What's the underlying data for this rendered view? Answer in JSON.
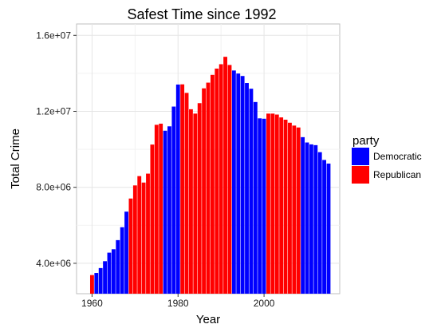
{
  "chart_data": {
    "type": "bar",
    "title": "Safest Time since 1992",
    "xlabel": "Year",
    "ylabel": "Total Crime",
    "xlim": [
      1956.4,
      2017.6
    ],
    "ylim": [
      2400000,
      16600000
    ],
    "x_ticks": [
      1960,
      1980,
      2000
    ],
    "x_tick_labels": [
      "1960",
      "1980",
      "2000"
    ],
    "y_ticks": [
      4000000,
      8000000,
      12000000,
      16000000
    ],
    "y_tick_labels": [
      "4.0e+06",
      "8.0e+06",
      "1.2e+07",
      "1.6e+07"
    ],
    "grid": true,
    "legend": {
      "title": "party",
      "position": "right",
      "entries": [
        {
          "name": "Democratic",
          "color": "#0000ff"
        },
        {
          "name": "Republican",
          "color": "#ff0000"
        }
      ]
    },
    "colors": {
      "Democratic": "#0000ff",
      "Republican": "#ff0000"
    },
    "x": [
      1960,
      1961,
      1962,
      1963,
      1964,
      1965,
      1966,
      1967,
      1968,
      1969,
      1970,
      1971,
      1972,
      1973,
      1974,
      1975,
      1976,
      1977,
      1978,
      1979,
      1980,
      1981,
      1982,
      1983,
      1984,
      1985,
      1986,
      1987,
      1988,
      1989,
      1990,
      1991,
      1992,
      1993,
      1994,
      1995,
      1996,
      1997,
      1998,
      1999,
      2000,
      2001,
      2002,
      2003,
      2004,
      2005,
      2006,
      2007,
      2008,
      2009,
      2010,
      2011,
      2012,
      2013,
      2014,
      2015
    ],
    "values": [
      3380000,
      3490000,
      3750000,
      4110000,
      4560000,
      4740000,
      5220000,
      5900000,
      6720000,
      7410000,
      8100000,
      8590000,
      8250000,
      8720000,
      10250000,
      11290000,
      11350000,
      10980000,
      11210000,
      12250000,
      13410000,
      13420000,
      12970000,
      12110000,
      11880000,
      12430000,
      13210000,
      13510000,
      13920000,
      14250000,
      14480000,
      14870000,
      14440000,
      14150000,
      13990000,
      13860000,
      13490000,
      13190000,
      12490000,
      11630000,
      11610000,
      11880000,
      11880000,
      11830000,
      11680000,
      11560000,
      11400000,
      11250000,
      11150000,
      10640000,
      10360000,
      10260000,
      10220000,
      9850000,
      9440000,
      9250000
    ],
    "party": [
      "Republican",
      "Democratic",
      "Democratic",
      "Democratic",
      "Democratic",
      "Democratic",
      "Democratic",
      "Democratic",
      "Democratic",
      "Republican",
      "Republican",
      "Republican",
      "Republican",
      "Republican",
      "Republican",
      "Republican",
      "Republican",
      "Democratic",
      "Democratic",
      "Democratic",
      "Democratic",
      "Republican",
      "Republican",
      "Republican",
      "Republican",
      "Republican",
      "Republican",
      "Republican",
      "Republican",
      "Republican",
      "Republican",
      "Republican",
      "Republican",
      "Democratic",
      "Democratic",
      "Democratic",
      "Democratic",
      "Democratic",
      "Democratic",
      "Democratic",
      "Democratic",
      "Republican",
      "Republican",
      "Republican",
      "Republican",
      "Republican",
      "Republican",
      "Republican",
      "Republican",
      "Democratic",
      "Democratic",
      "Democratic",
      "Democratic",
      "Democratic",
      "Democratic",
      "Democratic"
    ]
  }
}
